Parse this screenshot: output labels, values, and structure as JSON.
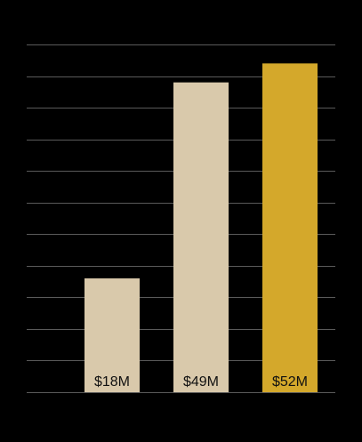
{
  "chart_data": {
    "type": "bar",
    "values": [
      18,
      49,
      52
    ],
    "value_labels": [
      "$18M",
      "$49M",
      "$52M"
    ],
    "colors": [
      "#d9c9ab",
      "#d9c9ab",
      "#d4a82b"
    ],
    "ylim": [
      0,
      55
    ],
    "yticks": [
      0,
      5,
      10,
      15,
      20,
      25,
      30,
      35,
      40,
      45,
      50,
      55
    ],
    "grid": true
  }
}
